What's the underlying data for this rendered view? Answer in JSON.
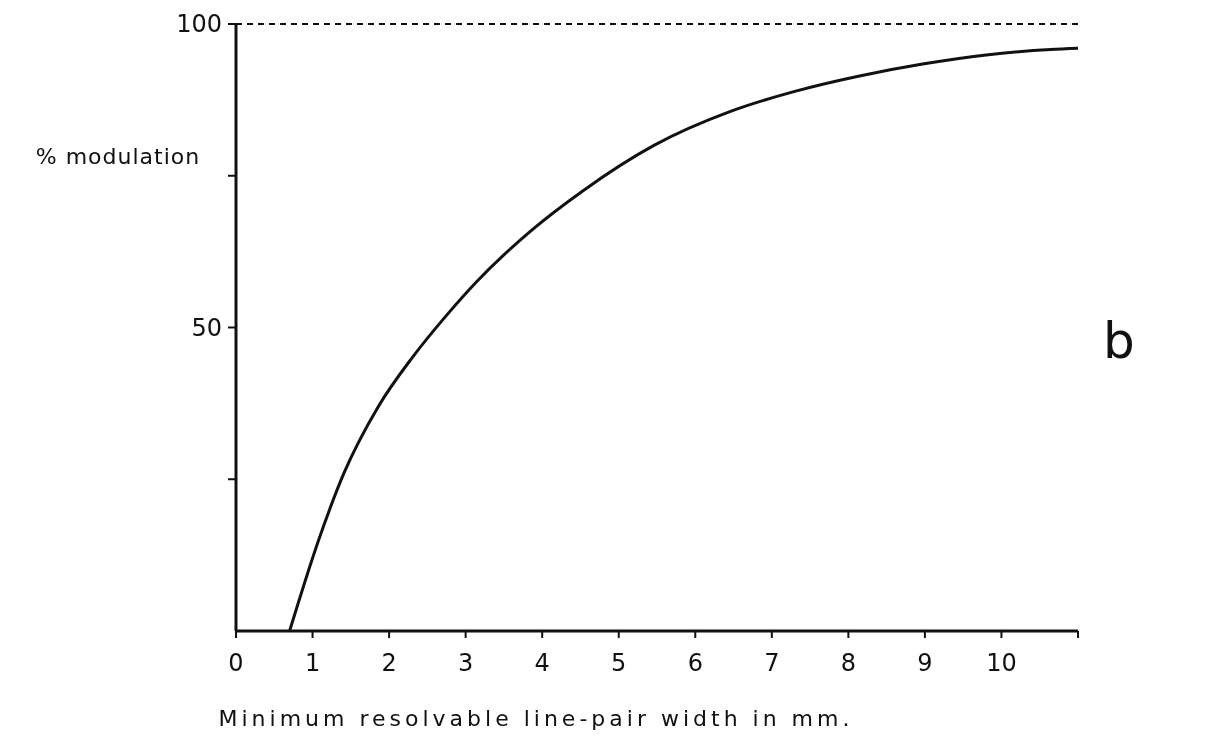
{
  "chart_data": {
    "type": "line",
    "xlabel": "Minimum resolvable line-pair width in mm.",
    "ylabel": "% modulation",
    "annotations": [
      "b"
    ],
    "xlim": [
      0,
      11
    ],
    "xticks": [
      0,
      1,
      2,
      3,
      4,
      5,
      6,
      7,
      8,
      9,
      10,
      {
        "value": 11,
        "label": null
      }
    ],
    "ylim": [
      0,
      100
    ],
    "yticks": [
      {
        "value": 25,
        "label": null
      },
      50,
      {
        "value": 75,
        "label": null
      },
      100
    ],
    "ref_lines": [
      {
        "axis": "y",
        "value": 100,
        "line_style": "dashed"
      }
    ],
    "grid": false,
    "marker": "none",
    "line_style": "solid",
    "series": [
      {
        "color": "#111111",
        "x": [
          0.7,
          1.08,
          1.41,
          1.86,
          2.3,
          2.75,
          3.14,
          3.86,
          4.53,
          5.46,
          6.46,
          7.3,
          8.13,
          8.97,
          9.8,
          10.64,
          11
        ],
        "values": [
          0,
          15,
          26,
          37,
          45,
          52,
          57.5,
          66,
          72.5,
          80,
          85.6,
          88.9,
          91.4,
          93.4,
          94.9,
          95.8,
          96
        ]
      }
    ]
  }
}
